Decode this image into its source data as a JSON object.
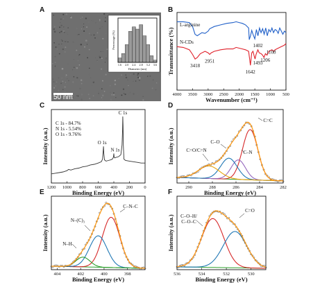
{
  "panels": {
    "A": {
      "label": "A",
      "scale_bar": "50 nm",
      "inset": {
        "ylabel": "Percentage (%)",
        "xlabel": "Diameter (nm)",
        "bar_color": "#9a9a9a"
      }
    },
    "B": {
      "label": "B"
    },
    "C": {
      "label": "C"
    },
    "D": {
      "label": "D"
    },
    "E": {
      "label": "E"
    },
    "F": {
      "label": "F"
    }
  },
  "chart_data": [
    {
      "panel": "A",
      "type": "bar",
      "ylabel": "Percentage (%)",
      "xlabel": "Diameter (nm)",
      "x": [
        1.6,
        1.8,
        2.0,
        2.2,
        2.4,
        2.6,
        2.8,
        3.0,
        3.2,
        3.4,
        3.6
      ],
      "values": [
        2,
        4,
        8,
        14,
        16,
        15,
        17,
        12,
        8,
        3,
        1
      ],
      "x_ticks": [
        "1.6",
        "2.0",
        "2.4",
        "2.8",
        "3.2",
        "3.6"
      ],
      "xlim": [
        1.5,
        3.7
      ],
      "ylim": [
        0,
        20
      ]
    },
    {
      "panel": "B",
      "type": "line",
      "xlabel": "Wavenumber (cm⁻¹)",
      "ylabel": "Transmittance (%)",
      "xlim": [
        4000,
        500
      ],
      "x_ticks": [
        "4000",
        "3500",
        "3000",
        "2500",
        "2000",
        "1500",
        "1000",
        "500"
      ],
      "series": [
        {
          "name": "L-arginine",
          "color": "#1f5fc8",
          "x": [
            4000,
            3800,
            3600,
            3500,
            3420,
            3350,
            3200,
            3100,
            3000,
            2950,
            2900,
            2800,
            2600,
            2400,
            2200,
            2100,
            2000,
            1900,
            1800,
            1700,
            1680,
            1640,
            1600,
            1560,
            1500,
            1450,
            1400,
            1350,
            1300,
            1250,
            1200,
            1150,
            1100,
            1050,
            1000,
            950,
            900,
            850,
            800,
            750,
            700,
            650,
            600,
            550,
            500
          ],
          "y": [
            0.88,
            0.88,
            0.87,
            0.82,
            0.72,
            0.7,
            0.74,
            0.73,
            0.76,
            0.79,
            0.8,
            0.82,
            0.84,
            0.86,
            0.87,
            0.88,
            0.87,
            0.86,
            0.84,
            0.8,
            0.65,
            0.7,
            0.77,
            0.72,
            0.66,
            0.78,
            0.7,
            0.8,
            0.74,
            0.79,
            0.72,
            0.8,
            0.7,
            0.78,
            0.75,
            0.8,
            0.74,
            0.78,
            0.77,
            0.73,
            0.8,
            0.76,
            0.72,
            0.76,
            0.74
          ]
        },
        {
          "name": "N-CDs",
          "color": "#e0202a",
          "x": [
            4000,
            3800,
            3600,
            3500,
            3418,
            3350,
            3250,
            3100,
            3000,
            2951,
            2900,
            2800,
            2600,
            2400,
            2200,
            2100,
            2000,
            1900,
            1800,
            1700,
            1642,
            1600,
            1560,
            1520,
            1493,
            1460,
            1402,
            1360,
            1300,
            1250,
            1206,
            1160,
            1108,
            1050,
            1000,
            950,
            900,
            850,
            800,
            750,
            700,
            650,
            600,
            550,
            500
          ],
          "y": [
            0.56,
            0.55,
            0.52,
            0.46,
            0.4,
            0.42,
            0.47,
            0.5,
            0.48,
            0.46,
            0.48,
            0.5,
            0.52,
            0.53,
            0.53,
            0.55,
            0.54,
            0.53,
            0.52,
            0.5,
            0.32,
            0.48,
            0.5,
            0.44,
            0.4,
            0.46,
            0.52,
            0.48,
            0.47,
            0.45,
            0.42,
            0.47,
            0.45,
            0.5,
            0.51,
            0.52,
            0.5,
            0.52,
            0.53,
            0.54,
            0.55,
            0.56,
            0.57,
            0.58,
            0.6
          ]
        }
      ],
      "annotations": [
        {
          "text": "3418",
          "x": 3418,
          "y": 0.4
        },
        {
          "text": "2951",
          "x": 2951,
          "y": 0.46
        },
        {
          "text": "1642",
          "x": 1642,
          "y": 0.32
        },
        {
          "text": "1493",
          "x": 1493,
          "y": 0.4
        },
        {
          "text": "1402",
          "x": 1402,
          "y": 0.52
        },
        {
          "text": "1206",
          "x": 1206,
          "y": 0.42
        },
        {
          "text": "1108",
          "x": 1108,
          "y": 0.45
        }
      ]
    },
    {
      "panel": "C",
      "type": "line",
      "xlabel": "Binding Energy (eV)",
      "ylabel": "Intensity (a.u.)",
      "xlim": [
        1200,
        0
      ],
      "x_ticks": [
        "1200",
        "1000",
        "800",
        "600",
        "400",
        "200",
        "0"
      ],
      "composition": [
        "C 1s - 84.7%",
        "N 1s - 5.54%",
        "O 1s - 9.76%"
      ],
      "peak_labels": [
        {
          "text": "C 1s",
          "x": 285
        },
        {
          "text": "O 1s",
          "x": 532
        },
        {
          "text": "N 1s",
          "x": 400
        }
      ],
      "series": [
        {
          "color": "#333333",
          "x": [
            1200,
            1150,
            1100,
            1050,
            1000,
            980,
            950,
            900,
            850,
            800,
            750,
            700,
            650,
            600,
            560,
            545,
            535,
            532,
            528,
            520,
            500,
            470,
            440,
            420,
            405,
            400,
            396,
            390,
            370,
            340,
            310,
            295,
            288,
            285,
            282,
            278,
            270,
            250,
            200,
            150,
            100,
            50,
            0
          ],
          "y": [
            0.1,
            0.11,
            0.12,
            0.13,
            0.15,
            0.17,
            0.16,
            0.18,
            0.19,
            0.21,
            0.22,
            0.24,
            0.25,
            0.27,
            0.29,
            0.33,
            0.48,
            0.53,
            0.42,
            0.32,
            0.3,
            0.31,
            0.32,
            0.33,
            0.36,
            0.42,
            0.37,
            0.35,
            0.36,
            0.37,
            0.4,
            0.55,
            0.8,
            1.0,
            0.85,
            0.55,
            0.33,
            0.31,
            0.3,
            0.29,
            0.28,
            0.27,
            0.27
          ]
        }
      ]
    },
    {
      "panel": "D",
      "type": "line",
      "xlabel": "Binding Energy (eV)",
      "ylabel": "Intensity (a.u.)",
      "xlim": [
        291,
        282
      ],
      "x_ticks": [
        "290",
        "288",
        "286",
        "284",
        "282"
      ],
      "peaks": [
        {
          "label": "C=C",
          "center": 284.8,
          "height": 0.72,
          "sigma": 0.65,
          "color": "#d62728"
        },
        {
          "label": "C–N",
          "center": 285.8,
          "height": 0.28,
          "sigma": 0.6,
          "color": "#9467bd"
        },
        {
          "label": "C–O",
          "center": 286.6,
          "height": 0.3,
          "sigma": 0.7,
          "color": "#1f77b4"
        },
        {
          "label": "C=O/C=N",
          "center": 288.3,
          "height": 0.18,
          "sigma": 0.9,
          "color": "#e8a20a"
        }
      ],
      "baseline": {
        "color": "#2ca02c",
        "left": 0.08,
        "right": 0.03
      },
      "envelope_color": "#ff9c1a",
      "raw_color": "#444444"
    },
    {
      "panel": "E",
      "type": "line",
      "xlabel": "Binding Energy (eV)",
      "ylabel": "Intensity (a.u.)",
      "xlim": [
        404.5,
        396.5
      ],
      "x_ticks": [
        "404",
        "402",
        "400",
        "398"
      ],
      "peaks": [
        {
          "label": "C–N–C",
          "center": 399.4,
          "height": 0.72,
          "sigma": 0.75,
          "color": "#d62728"
        },
        {
          "label": "N–(C)₃",
          "center": 400.5,
          "height": 0.45,
          "sigma": 0.75,
          "color": "#1f77b4"
        },
        {
          "label": "N–H",
          "center": 401.8,
          "height": 0.14,
          "sigma": 0.6,
          "color": "#2ca02c"
        }
      ],
      "baseline": {
        "color": "#2ca02c",
        "left": 0.05,
        "right": 0.02
      },
      "envelope_color": "#ff9c1a",
      "raw_color": "#444444"
    },
    {
      "panel": "F",
      "type": "line",
      "xlabel": "Binding Energy (eV)",
      "ylabel": "Intensity (a.u.)",
      "xlim": [
        536,
        528.8
      ],
      "x_ticks": [
        "536",
        "534",
        "532",
        "530"
      ],
      "peaks": [
        {
          "label": "C–O–H/\nC–O–C",
          "center": 533.1,
          "height": 0.7,
          "sigma": 0.9,
          "color": "#d62728"
        },
        {
          "label": "C=O",
          "center": 531.3,
          "height": 0.52,
          "sigma": 0.95,
          "color": "#1f77b4"
        }
      ],
      "baseline": {
        "color": "#2ca02c",
        "left": 0.04,
        "right": 0.02
      },
      "envelope_color": "#ff9c1a",
      "raw_color": "#444444"
    }
  ]
}
